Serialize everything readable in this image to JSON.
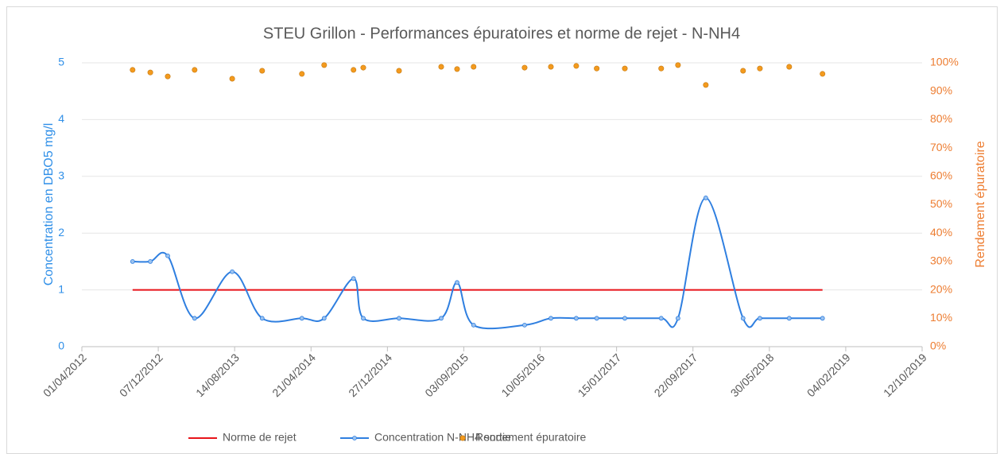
{
  "chart_data": {
    "type": "combo",
    "title": "STEU Grillon - Performances  épuratoires et norme de rejet - N-NH4",
    "y_label": "Concentration en DBO5 mg/l",
    "y2_label": "Rendement épuratoire",
    "xlim": [
      "01/04/2012",
      "12/10/2019"
    ],
    "xticks": [
      "01/04/2012",
      "07/12/2012",
      "14/08/2013",
      "21/04/2014",
      "27/12/2014",
      "03/09/2015",
      "10/05/2016",
      "15/01/2017",
      "22/09/2017",
      "30/05/2018",
      "04/02/2019",
      "12/10/2019"
    ],
    "ylim": [
      0,
      5
    ],
    "yticks": [
      0,
      1,
      2,
      3,
      4,
      5
    ],
    "y2lim": [
      0,
      100
    ],
    "y2ticks": [
      {
        "value": 0,
        "label": "0%"
      },
      {
        "value": 10,
        "label": "10%"
      },
      {
        "value": 20,
        "label": "20%"
      },
      {
        "value": 30,
        "label": "30%"
      },
      {
        "value": 40,
        "label": "40%"
      },
      {
        "value": 50,
        "label": "50%"
      },
      {
        "value": 60,
        "label": "60%"
      },
      {
        "value": 70,
        "label": "70%"
      },
      {
        "value": 80,
        "label": "80%"
      },
      {
        "value": 90,
        "label": "90%"
      },
      {
        "value": 100,
        "label": "100%"
      }
    ],
    "grid": true,
    "legend": "bottom",
    "series": [
      {
        "name": "Norme de rejet",
        "type": "line",
        "color": "#e8141a",
        "x": [
          "14/09/2012",
          "20/11/2018"
        ],
        "values": [
          1,
          1
        ]
      },
      {
        "name": "Concentration N-NH4 sortie",
        "type": "smooth-line",
        "color": "#2f7fe0",
        "x": [
          "14/09/2012",
          "11/11/2012",
          "07/01/2013",
          "05/04/2013",
          "06/08/2013",
          "12/11/2013",
          "22/03/2014",
          "03/06/2014",
          "07/09/2014",
          "09/10/2014",
          "03/02/2015",
          "21/06/2015",
          "12/08/2015",
          "05/10/2015",
          "20/03/2016",
          "14/06/2016",
          "05/09/2016",
          "11/11/2016",
          "11/02/2017",
          "10/06/2017",
          "04/08/2017",
          "03/11/2017",
          "05/03/2018",
          "29/04/2018",
          "03/08/2018",
          "20/11/2018"
        ],
        "values": [
          1.5,
          1.5,
          1.6,
          0.5,
          1.32,
          0.5,
          0.5,
          0.5,
          1.2,
          0.5,
          0.5,
          0.5,
          1.13,
          0.38,
          0.38,
          0.5,
          0.5,
          0.5,
          0.5,
          0.5,
          0.5,
          2.62,
          0.5,
          0.5,
          0.5,
          0.5
        ]
      },
      {
        "name": "Rendement épuratoire",
        "type": "scatter",
        "axis": "y2",
        "color": "#f39a1e",
        "x": [
          "14/09/2012",
          "11/11/2012",
          "07/01/2013",
          "05/04/2013",
          "06/08/2013",
          "12/11/2013",
          "22/03/2014",
          "03/06/2014",
          "07/09/2014",
          "09/10/2014",
          "03/02/2015",
          "21/06/2015",
          "12/08/2015",
          "05/10/2015",
          "20/03/2016",
          "14/06/2016",
          "05/09/2016",
          "11/11/2016",
          "11/02/2017",
          "10/06/2017",
          "04/08/2017",
          "03/11/2017",
          "05/03/2018",
          "29/04/2018",
          "03/08/2018",
          "20/11/2018"
        ],
        "values": [
          97.5,
          96.6,
          95.2,
          97.5,
          94.4,
          97.2,
          96.1,
          99.2,
          97.5,
          98.3,
          97.2,
          98.6,
          97.8,
          98.6,
          98.3,
          98.6,
          98.9,
          98.0,
          98.0,
          98.0,
          99.2,
          92.2,
          97.2,
          98.0,
          98.6,
          96.1
        ]
      }
    ]
  }
}
